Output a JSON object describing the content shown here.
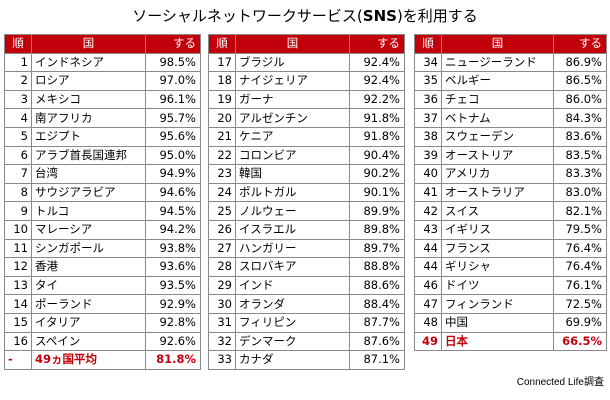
{
  "title": {
    "pre": "ソーシャルネットワークサービス(",
    "sns": "SNS",
    "post": ")を利用する"
  },
  "headers": {
    "rank": "順",
    "country": "国",
    "value": "する"
  },
  "columns": [
    {
      "rows": [
        {
          "rank": "1",
          "country": "インドネシア",
          "value": "98.5%"
        },
        {
          "rank": "2",
          "country": "ロシア",
          "value": "97.0%"
        },
        {
          "rank": "3",
          "country": "メキシコ",
          "value": "96.1%"
        },
        {
          "rank": "4",
          "country": "南アフリカ",
          "value": "95.7%"
        },
        {
          "rank": "5",
          "country": "エジプト",
          "value": "95.6%"
        },
        {
          "rank": "6",
          "country": "アラブ首長国連邦",
          "value": "95.0%"
        },
        {
          "rank": "7",
          "country": "台湾",
          "value": "94.9%"
        },
        {
          "rank": "8",
          "country": "サウジアラビア",
          "value": "94.6%"
        },
        {
          "rank": "9",
          "country": "トルコ",
          "value": "94.5%"
        },
        {
          "rank": "10",
          "country": "マレーシア",
          "value": "94.2%"
        },
        {
          "rank": "11",
          "country": "シンガポール",
          "value": "93.8%"
        },
        {
          "rank": "12",
          "country": "香港",
          "value": "93.6%"
        },
        {
          "rank": "13",
          "country": "タイ",
          "value": "93.5%"
        },
        {
          "rank": "14",
          "country": "ポーランド",
          "value": "92.9%"
        },
        {
          "rank": "15",
          "country": "イタリア",
          "value": "92.8%"
        },
        {
          "rank": "16",
          "country": "スペイン",
          "value": "92.6%"
        },
        {
          "rank": "-",
          "country": "49ヵ国平均",
          "value": "81.8%",
          "highlight": true
        }
      ]
    },
    {
      "rows": [
        {
          "rank": "17",
          "country": "ブラジル",
          "value": "92.4%"
        },
        {
          "rank": "18",
          "country": "ナイジェリア",
          "value": "92.4%"
        },
        {
          "rank": "19",
          "country": "ガーナ",
          "value": "92.2%"
        },
        {
          "rank": "20",
          "country": "アルゼンチン",
          "value": "91.8%"
        },
        {
          "rank": "21",
          "country": "ケニア",
          "value": "91.8%"
        },
        {
          "rank": "22",
          "country": "コロンビア",
          "value": "90.4%"
        },
        {
          "rank": "23",
          "country": "韓国",
          "value": "90.2%"
        },
        {
          "rank": "24",
          "country": "ポルトガル",
          "value": "90.1%"
        },
        {
          "rank": "25",
          "country": "ノルウェー",
          "value": "89.9%"
        },
        {
          "rank": "26",
          "country": "イスラエル",
          "value": "89.8%"
        },
        {
          "rank": "27",
          "country": "ハンガリー",
          "value": "89.7%"
        },
        {
          "rank": "28",
          "country": "スロバキア",
          "value": "88.8%"
        },
        {
          "rank": "29",
          "country": "インド",
          "value": "88.6%"
        },
        {
          "rank": "30",
          "country": "オランダ",
          "value": "88.4%"
        },
        {
          "rank": "31",
          "country": "フィリピン",
          "value": "87.7%"
        },
        {
          "rank": "32",
          "country": "デンマーク",
          "value": "87.6%"
        },
        {
          "rank": "33",
          "country": "カナダ",
          "value": "87.1%"
        }
      ]
    },
    {
      "rows": [
        {
          "rank": "34",
          "country": "ニュージーランド",
          "value": "86.9%"
        },
        {
          "rank": "35",
          "country": "ベルギー",
          "value": "86.5%"
        },
        {
          "rank": "36",
          "country": "チェコ",
          "value": "86.0%"
        },
        {
          "rank": "37",
          "country": "ベトナム",
          "value": "84.3%"
        },
        {
          "rank": "38",
          "country": "スウェーデン",
          "value": "83.6%"
        },
        {
          "rank": "39",
          "country": "オーストリア",
          "value": "83.5%"
        },
        {
          "rank": "40",
          "country": "アメリカ",
          "value": "83.3%"
        },
        {
          "rank": "41",
          "country": "オーストラリア",
          "value": "83.0%"
        },
        {
          "rank": "42",
          "country": "スイス",
          "value": "82.1%"
        },
        {
          "rank": "43",
          "country": "イギリス",
          "value": "79.5%"
        },
        {
          "rank": "44",
          "country": "フランス",
          "value": "76.4%"
        },
        {
          "rank": "44",
          "country": "ギリシャ",
          "value": "76.4%"
        },
        {
          "rank": "46",
          "country": "ドイツ",
          "value": "76.1%"
        },
        {
          "rank": "47",
          "country": "フィンランド",
          "value": "72.5%"
        },
        {
          "rank": "48",
          "country": "中国",
          "value": "69.9%"
        },
        {
          "rank": "49",
          "country": "日本",
          "value": "66.5%",
          "highlight": true
        }
      ]
    }
  ],
  "credit": "Connected Life調査"
}
